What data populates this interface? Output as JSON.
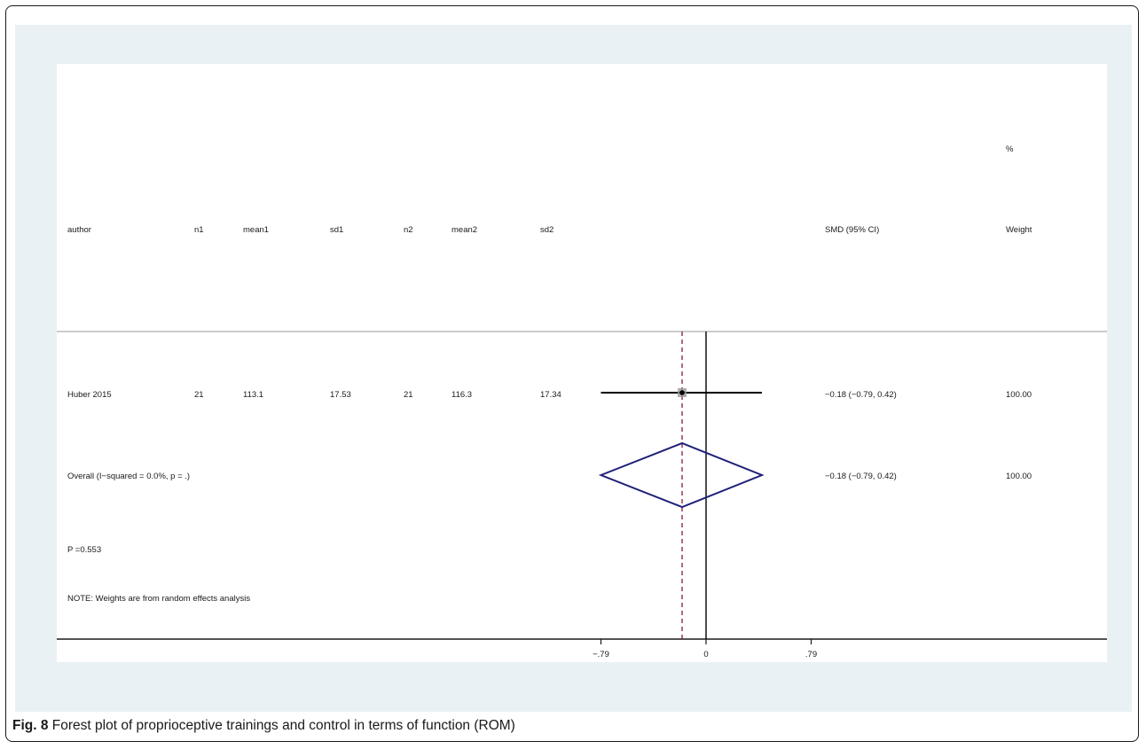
{
  "chart_data": {
    "type": "forest",
    "columns": {
      "author": "author",
      "n1": "n1",
      "mean1": "mean1",
      "sd1": "sd1",
      "n2": "n2",
      "mean2": "mean2",
      "sd2": "sd2",
      "effect": "SMD (95% CI)",
      "weight_pct": "%",
      "weight": "Weight"
    },
    "studies": [
      {
        "author": "Huber 2015",
        "n1": "21",
        "mean1": "113.1",
        "sd1": "17.53",
        "n2": "21",
        "mean2": "116.3",
        "sd2": "17.34",
        "smd": -0.18,
        "ci_low": -0.79,
        "ci_high": 0.42,
        "ci_text": "−0.18 (−0.79, 0.42)",
        "weight": "100.00"
      }
    ],
    "overall": {
      "label": "Overall  (I−squared = 0.0%, p = .)",
      "smd": -0.18,
      "ci_low": -0.79,
      "ci_high": 0.42,
      "ci_text": "−0.18 (−0.79, 0.42)",
      "weight": "100.00"
    },
    "p_value_text": "P =0.553",
    "note": "NOTE: Weights are from random effects analysis",
    "x_ticks": [
      {
        "value": -0.79,
        "label": "−.79"
      },
      {
        "value": 0,
        "label": "0"
      },
      {
        "value": 0.79,
        "label": ".79"
      }
    ],
    "xlim": [
      -0.79,
      0.79
    ],
    "colors": {
      "diamond": "#1f1f7a",
      "pooled_line": "#8b1a2b",
      "ci_line": "#000000",
      "background": "#e9f1f4"
    }
  },
  "caption": {
    "fig_label": "Fig. 8",
    "text": " Forest plot of proprioceptive trainings and control in terms of function (ROM)"
  }
}
